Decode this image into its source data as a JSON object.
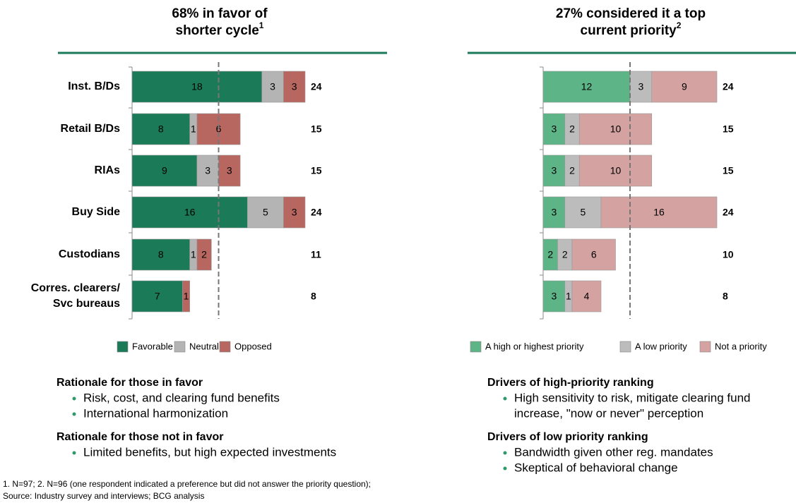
{
  "chart_data": [
    {
      "type": "stacked_bar",
      "title_lines": [
        "68% in favor of",
        "shorter cycle"
      ],
      "title_note": "1",
      "categories": [
        "Inst. B/Ds",
        "Retail B/Ds",
        "RIAs",
        "Buy Side",
        "Custodians",
        "Corres. clearers/ Svc bureaus"
      ],
      "category_lines": [
        [
          "Inst. B/Ds"
        ],
        [
          "Retail B/Ds"
        ],
        [
          "RIAs"
        ],
        [
          "Buy Side"
        ],
        [
          "Custodians"
        ],
        [
          "Corres. clearers/",
          "Svc bureaus"
        ]
      ],
      "series": [
        {
          "name": "Favorable",
          "color": "#1b7a58",
          "label_color": "#ffffff",
          "values": [
            18,
            8,
            9,
            16,
            8,
            7
          ]
        },
        {
          "name": "Neutral",
          "color": "#b4b4b4",
          "label_color": "#000000",
          "values": [
            3,
            1,
            3,
            5,
            1,
            null
          ]
        },
        {
          "name": "Opposed",
          "color": "#b76760",
          "label_color": "#000000",
          "values": [
            3,
            6,
            3,
            3,
            2,
            1
          ]
        }
      ],
      "totals": [
        24,
        15,
        15,
        24,
        11,
        8
      ],
      "xlim": [
        0,
        24
      ],
      "reference_line": 12
    },
    {
      "type": "stacked_bar",
      "title_lines": [
        "27% considered it a top",
        "current priority"
      ],
      "title_note": "2",
      "categories": [
        null,
        null,
        null,
        null,
        null,
        null
      ],
      "series": [
        {
          "name": "A high or highest priority",
          "color": "#5db487",
          "label_color": "#000000",
          "values": [
            12,
            3,
            3,
            3,
            2,
            3
          ]
        },
        {
          "name": "A low priority",
          "color": "#bcbcbc",
          "label_color": "#000000",
          "values": [
            3,
            2,
            2,
            5,
            2,
            1
          ]
        },
        {
          "name": "Not a priority",
          "color": "#d3a2a1",
          "label_color": "#000000",
          "values": [
            9,
            10,
            10,
            16,
            6,
            4
          ]
        }
      ],
      "totals": [
        24,
        15,
        15,
        24,
        10,
        8
      ],
      "xlim": [
        0,
        24
      ],
      "reference_line": 12
    }
  ],
  "notes": [
    {
      "sections": [
        {
          "heading": "Rationale for those in favor",
          "bullets": [
            [
              "Risk, cost, and clearing fund benefits"
            ],
            [
              "International harmonization"
            ]
          ]
        },
        {
          "heading": "Rationale for those not in favor",
          "bullets": [
            [
              "Limited benefits, but high expected investments"
            ]
          ]
        }
      ]
    },
    {
      "sections": [
        {
          "heading": "Drivers of high-priority ranking",
          "bullets": [
            [
              "High sensitivity to risk, mitigate clearing fund",
              "increase, \"now or never\" perception"
            ]
          ]
        },
        {
          "heading": "Drivers of low priority ranking",
          "bullets": [
            [
              "Bandwidth given other reg. mandates"
            ],
            [
              "Skeptical of behavioral change"
            ]
          ]
        }
      ]
    }
  ],
  "footnotes": [
    "1. N=97;  2. N=96 (one respondent indicated a preference but did not answer the priority question);",
    "Source: Industry survey and interviews; BCG analysis"
  ]
}
